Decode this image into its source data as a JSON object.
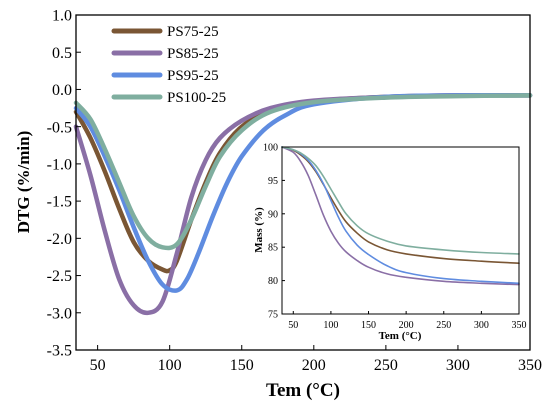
{
  "colors": {
    "axis": "#000000",
    "PS75-25": "#7a5634",
    "PS85-25": "#8a6fa6",
    "PS95-25": "#5f8ce0",
    "PS100-25": "#7fae9f"
  },
  "chart_data": [
    {
      "type": "line",
      "xlabel": "Tem (°C)",
      "ylabel": "DTG (%/min)",
      "xlim": [
        35,
        350
      ],
      "ylim": [
        -3.5,
        1.0
      ],
      "xticks": [
        50,
        100,
        150,
        200,
        250,
        300,
        350
      ],
      "yticks": [
        1.0,
        0.5,
        0.0,
        -0.5,
        -1.0,
        -1.5,
        -2.0,
        -2.5,
        -3.0,
        -3.5
      ],
      "ytick_labels": [
        "1.0",
        "0.5",
        "0.0",
        "-0.5",
        "-1.0",
        "-1.5",
        "-2.0",
        "-2.5",
        "-3.0",
        "-3.5"
      ],
      "legend_position": "top-left",
      "grid": false,
      "series": [
        {
          "name": "PS75-25",
          "x": [
            35,
            45,
            55,
            65,
            75,
            85,
            95,
            100,
            105,
            115,
            125,
            135,
            150,
            170,
            200,
            250,
            300,
            350
          ],
          "y": [
            -0.3,
            -0.65,
            -1.1,
            -1.6,
            -2.05,
            -2.3,
            -2.42,
            -2.43,
            -2.3,
            -1.75,
            -1.25,
            -0.85,
            -0.5,
            -0.28,
            -0.16,
            -0.1,
            -0.08,
            -0.08
          ]
        },
        {
          "name": "PS85-25",
          "x": [
            35,
            45,
            55,
            65,
            75,
            85,
            95,
            105,
            115,
            125,
            135,
            150,
            170,
            200,
            250,
            300,
            350
          ],
          "y": [
            -0.5,
            -1.15,
            -1.9,
            -2.55,
            -2.9,
            -3.0,
            -2.85,
            -2.2,
            -1.45,
            -0.95,
            -0.65,
            -0.42,
            -0.25,
            -0.15,
            -0.1,
            -0.08,
            -0.08
          ]
        },
        {
          "name": "PS95-25",
          "x": [
            35,
            45,
            55,
            65,
            75,
            85,
            95,
            105,
            112,
            120,
            130,
            140,
            150,
            165,
            180,
            200,
            250,
            300,
            350
          ],
          "y": [
            -0.25,
            -0.5,
            -0.9,
            -1.35,
            -1.85,
            -2.3,
            -2.62,
            -2.7,
            -2.55,
            -2.2,
            -1.7,
            -1.25,
            -0.9,
            -0.55,
            -0.35,
            -0.2,
            -0.1,
            -0.08,
            -0.08
          ]
        },
        {
          "name": "PS100-25",
          "x": [
            35,
            45,
            55,
            65,
            75,
            85,
            95,
            105,
            115,
            125,
            135,
            150,
            170,
            200,
            250,
            300,
            350
          ],
          "y": [
            -0.18,
            -0.4,
            -0.8,
            -1.25,
            -1.7,
            -2.0,
            -2.12,
            -2.08,
            -1.75,
            -1.3,
            -0.9,
            -0.55,
            -0.3,
            -0.17,
            -0.11,
            -0.09,
            -0.08
          ]
        }
      ]
    },
    {
      "type": "line",
      "xlabel": "Tem (°C)",
      "ylabel": "Mass (%)",
      "xlim": [
        35,
        350
      ],
      "ylim": [
        75,
        100
      ],
      "xticks": [
        50,
        100,
        150,
        200,
        250,
        300,
        350
      ],
      "yticks": [
        75,
        80,
        85,
        90,
        95,
        100
      ],
      "series": [
        {
          "name": "PS75-25",
          "x": [
            35,
            50,
            60,
            70,
            80,
            90,
            100,
            110,
            120,
            135,
            150,
            175,
            200,
            250,
            300,
            350
          ],
          "y": [
            100,
            99.5,
            98.8,
            97.8,
            96.3,
            94.4,
            92.4,
            90.5,
            88.8,
            87.1,
            85.8,
            84.6,
            84.0,
            83.3,
            82.9,
            82.6
          ]
        },
        {
          "name": "PS85-25",
          "x": [
            35,
            50,
            60,
            70,
            80,
            90,
            100,
            110,
            120,
            135,
            150,
            175,
            200,
            250,
            300,
            350
          ],
          "y": [
            100,
            99.2,
            97.8,
            95.7,
            92.8,
            89.8,
            87.4,
            85.6,
            84.3,
            83.0,
            82.0,
            81.0,
            80.5,
            79.9,
            79.6,
            79.4
          ]
        },
        {
          "name": "PS95-25",
          "x": [
            35,
            50,
            60,
            70,
            80,
            90,
            100,
            110,
            120,
            135,
            150,
            175,
            200,
            250,
            300,
            350
          ],
          "y": [
            100,
            99.6,
            99.0,
            98.0,
            96.5,
            94.5,
            92.0,
            89.5,
            87.4,
            85.3,
            83.9,
            82.2,
            81.2,
            80.3,
            79.9,
            79.6
          ]
        },
        {
          "name": "PS100-25",
          "x": [
            35,
            50,
            60,
            70,
            80,
            90,
            100,
            110,
            120,
            135,
            150,
            175,
            200,
            250,
            300,
            350
          ],
          "y": [
            100,
            99.6,
            99.1,
            98.3,
            97.2,
            95.6,
            93.7,
            91.8,
            90.0,
            88.2,
            87.0,
            85.9,
            85.2,
            84.6,
            84.2,
            84.0
          ]
        }
      ]
    }
  ]
}
